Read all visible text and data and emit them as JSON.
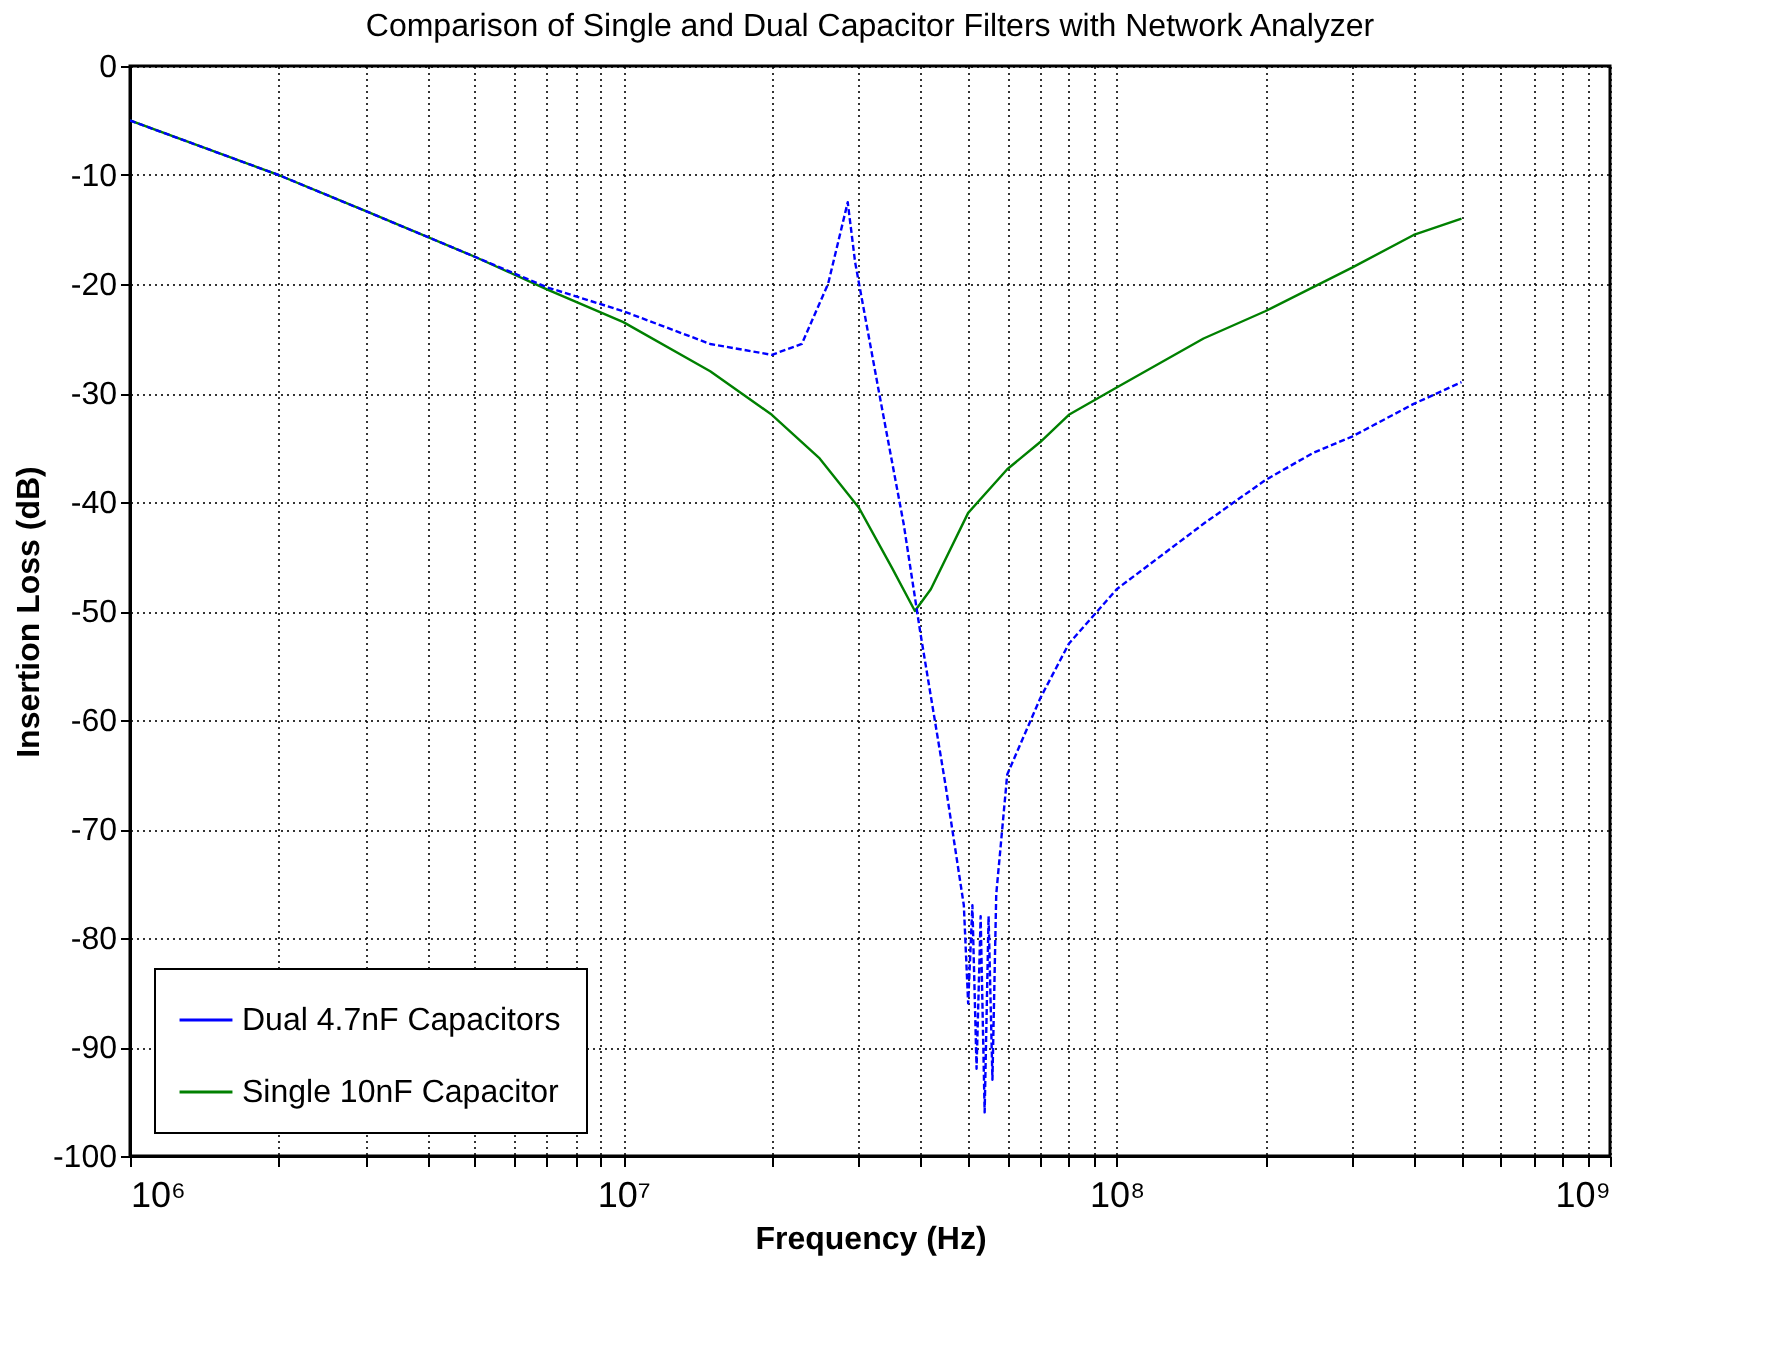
{
  "chart_data": {
    "type": "line",
    "title": "Comparison of Single and Dual Capacitor Filters with Network Analyzer",
    "xlabel": "Frequency (Hz)",
    "ylabel": "Insertion Loss (dB)",
    "log": "x",
    "grid": true,
    "legend": "bottom left",
    "xlim": [
      1000000,
      1000000000
    ],
    "ylim": [
      -100,
      0
    ],
    "xticks": [
      {
        "value": 1000000,
        "label": "10⁶"
      },
      {
        "value": 2000000,
        "label": null
      },
      {
        "value": 3000000,
        "label": null
      },
      {
        "value": 4000000,
        "label": null
      },
      {
        "value": 5000000,
        "label": null
      },
      {
        "value": 6000000,
        "label": null
      },
      {
        "value": 7000000,
        "label": null
      },
      {
        "value": 8000000,
        "label": null
      },
      {
        "value": 9000000,
        "label": null
      },
      {
        "value": 10000000,
        "label": "10⁷"
      },
      {
        "value": 20000000,
        "label": null
      },
      {
        "value": 30000000,
        "label": null
      },
      {
        "value": 40000000,
        "label": null
      },
      {
        "value": 50000000,
        "label": null
      },
      {
        "value": 60000000,
        "label": null
      },
      {
        "value": 70000000,
        "label": null
      },
      {
        "value": 80000000,
        "label": null
      },
      {
        "value": 90000000,
        "label": null
      },
      {
        "value": 100000000,
        "label": "10⁸"
      },
      {
        "value": 200000000,
        "label": null
      },
      {
        "value": 300000000,
        "label": null
      },
      {
        "value": 400000000,
        "label": null
      },
      {
        "value": 500000000,
        "label": null
      },
      {
        "value": 600000000,
        "label": null
      },
      {
        "value": 700000000,
        "label": null
      },
      {
        "value": 800000000,
        "label": null
      },
      {
        "value": 900000000,
        "label": null
      },
      {
        "value": 1000000000,
        "label": "10⁹"
      }
    ],
    "yticks": [
      -100,
      -90,
      -80,
      -70,
      -60,
      -50,
      -40,
      -30,
      -20,
      -10,
      0
    ],
    "series": [
      {
        "name": "Dual 4.7nF Capacitors",
        "color": "#0000ff",
        "line_style": "dashed",
        "x": [
          1000000,
          2000000,
          3000000,
          5000000,
          7000000,
          10000000,
          15000000,
          20000000,
          23000000,
          26000000,
          28500000,
          29500000,
          33000000,
          37000000,
          40000000,
          45000000,
          49000000,
          50000000,
          51000000,
          52000000,
          53000000,
          54000000,
          55000000,
          56000000,
          57000000,
          60000000,
          70000000,
          80000000,
          100000000,
          150000000,
          200000000,
          250000000,
          300000000,
          400000000,
          500000000
        ],
        "values": [
          -5,
          -10,
          -13.3,
          -17.5,
          -20.3,
          -22.5,
          -25.5,
          -26.5,
          -25.5,
          -20,
          -12.5,
          -18,
          -30,
          -42,
          -52,
          -66,
          -77,
          -86,
          -77,
          -92,
          -78,
          -96,
          -78,
          -93,
          -76,
          -65,
          -58,
          -53,
          -48,
          -42,
          -38,
          -35.5,
          -34,
          -31,
          -29
        ]
      },
      {
        "name": "Single 10nF Capacitor",
        "color": "#008000",
        "line_style": "solid",
        "x": [
          1000000,
          2000000,
          3000000,
          5000000,
          7000000,
          10000000,
          15000000,
          20000000,
          25000000,
          30000000,
          35000000,
          39000000,
          42000000,
          50000000,
          60000000,
          70000000,
          80000000,
          100000000,
          150000000,
          200000000,
          300000000,
          400000000,
          500000000
        ],
        "values": [
          -5,
          -10,
          -13.3,
          -17.5,
          -20.5,
          -23.5,
          -28,
          -32,
          -36,
          -40.5,
          -46,
          -50,
          -48,
          -41,
          -37,
          -34.5,
          -32,
          -29.5,
          -25,
          -22.5,
          -18.5,
          -15.5,
          -14
        ]
      }
    ]
  }
}
